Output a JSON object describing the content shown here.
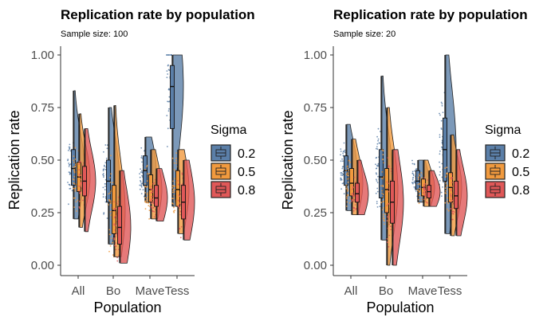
{
  "chart_data": [
    {
      "type": "raincloud",
      "title": "Replication rate by population",
      "subtitle": "Sample size: 100",
      "xlabel": "Population",
      "ylabel": "Replication rate",
      "categories": [
        "All",
        "Bo",
        "Mave",
        "Tess"
      ],
      "ylim": [
        0,
        1
      ],
      "yticks": [
        "0.00",
        "0.25",
        "0.50",
        "0.75",
        "1.00"
      ],
      "legend": {
        "title": "Sigma",
        "placement": "right"
      },
      "grid": false,
      "series": [
        {
          "name": "0.2",
          "color": "#5b7fa8",
          "groups": [
            {
              "category": "All",
              "min": 0.22,
              "q1": 0.38,
              "median": 0.46,
              "q3": 0.55,
              "max": 0.83
            },
            {
              "category": "Bo",
              "min": 0.1,
              "q1": 0.3,
              "median": 0.4,
              "q3": 0.5,
              "max": 0.75
            },
            {
              "category": "Mave",
              "min": 0.3,
              "q1": 0.38,
              "median": 0.45,
              "q3": 0.52,
              "max": 0.61
            },
            {
              "category": "Tess",
              "min": 0.28,
              "q1": 0.65,
              "median": 0.85,
              "q3": 0.95,
              "max": 1.0
            }
          ]
        },
        {
          "name": "0.5",
          "color": "#f19a3e",
          "groups": [
            {
              "category": "All",
              "min": 0.18,
              "q1": 0.35,
              "median": 0.42,
              "q3": 0.49,
              "max": 0.72
            },
            {
              "category": "Bo",
              "min": 0.04,
              "q1": 0.15,
              "median": 0.26,
              "q3": 0.38,
              "max": 0.76
            },
            {
              "category": "Mave",
              "min": 0.22,
              "q1": 0.3,
              "median": 0.36,
              "q3": 0.43,
              "max": 0.55
            },
            {
              "category": "Tess",
              "min": 0.15,
              "q1": 0.28,
              "median": 0.36,
              "q3": 0.45,
              "max": 0.55
            }
          ]
        },
        {
          "name": "0.8",
          "color": "#e05858",
          "groups": [
            {
              "category": "All",
              "min": 0.16,
              "q1": 0.33,
              "median": 0.4,
              "q3": 0.47,
              "max": 0.65
            },
            {
              "category": "Bo",
              "min": 0.01,
              "q1": 0.1,
              "median": 0.18,
              "q3": 0.28,
              "max": 0.45
            },
            {
              "category": "Mave",
              "min": 0.21,
              "q1": 0.28,
              "median": 0.32,
              "q3": 0.38,
              "max": 0.46
            },
            {
              "category": "Tess",
              "min": 0.12,
              "q1": 0.22,
              "median": 0.3,
              "q3": 0.38,
              "max": 0.5
            }
          ]
        }
      ]
    },
    {
      "type": "raincloud",
      "title": "Replication rate by population",
      "subtitle": "Sample size: 20",
      "xlabel": "Population",
      "ylabel": "Replication rate",
      "categories": [
        "All",
        "Bo",
        "Mave",
        "Tess"
      ],
      "ylim": [
        0,
        1
      ],
      "yticks": [
        "0.00",
        "0.25",
        "0.50",
        "0.75",
        "1.00"
      ],
      "legend": {
        "title": "Sigma",
        "placement": "right"
      },
      "grid": false,
      "series": [
        {
          "name": "0.2",
          "color": "#5b7fa8",
          "groups": [
            {
              "category": "All",
              "min": 0.26,
              "q1": 0.38,
              "median": 0.45,
              "q3": 0.52,
              "max": 0.67
            },
            {
              "category": "Bo",
              "min": 0.12,
              "q1": 0.32,
              "median": 0.42,
              "q3": 0.55,
              "max": 0.9
            },
            {
              "category": "Mave",
              "min": 0.3,
              "q1": 0.36,
              "median": 0.4,
              "q3": 0.45,
              "max": 0.5
            },
            {
              "category": "Tess",
              "min": 0.15,
              "q1": 0.4,
              "median": 0.55,
              "q3": 0.7,
              "max": 1.0
            }
          ]
        },
        {
          "name": "0.5",
          "color": "#f19a3e",
          "groups": [
            {
              "category": "All",
              "min": 0.24,
              "q1": 0.33,
              "median": 0.39,
              "q3": 0.46,
              "max": 0.6
            },
            {
              "category": "Bo",
              "min": 0.0,
              "q1": 0.25,
              "median": 0.36,
              "q3": 0.46,
              "max": 0.75
            },
            {
              "category": "Mave",
              "min": 0.28,
              "q1": 0.33,
              "median": 0.37,
              "q3": 0.41,
              "max": 0.5
            },
            {
              "category": "Tess",
              "min": 0.14,
              "q1": 0.3,
              "median": 0.37,
              "q3": 0.44,
              "max": 0.62
            }
          ]
        },
        {
          "name": "0.8",
          "color": "#e05858",
          "groups": [
            {
              "category": "All",
              "min": 0.24,
              "q1": 0.3,
              "median": 0.34,
              "q3": 0.39,
              "max": 0.5
            },
            {
              "category": "Bo",
              "min": 0.0,
              "q1": 0.2,
              "median": 0.3,
              "q3": 0.4,
              "max": 0.55
            },
            {
              "category": "Mave",
              "min": 0.28,
              "q1": 0.32,
              "median": 0.35,
              "q3": 0.38,
              "max": 0.45
            },
            {
              "category": "Tess",
              "min": 0.14,
              "q1": 0.27,
              "median": 0.33,
              "q3": 0.4,
              "max": 0.55
            }
          ]
        }
      ]
    }
  ]
}
